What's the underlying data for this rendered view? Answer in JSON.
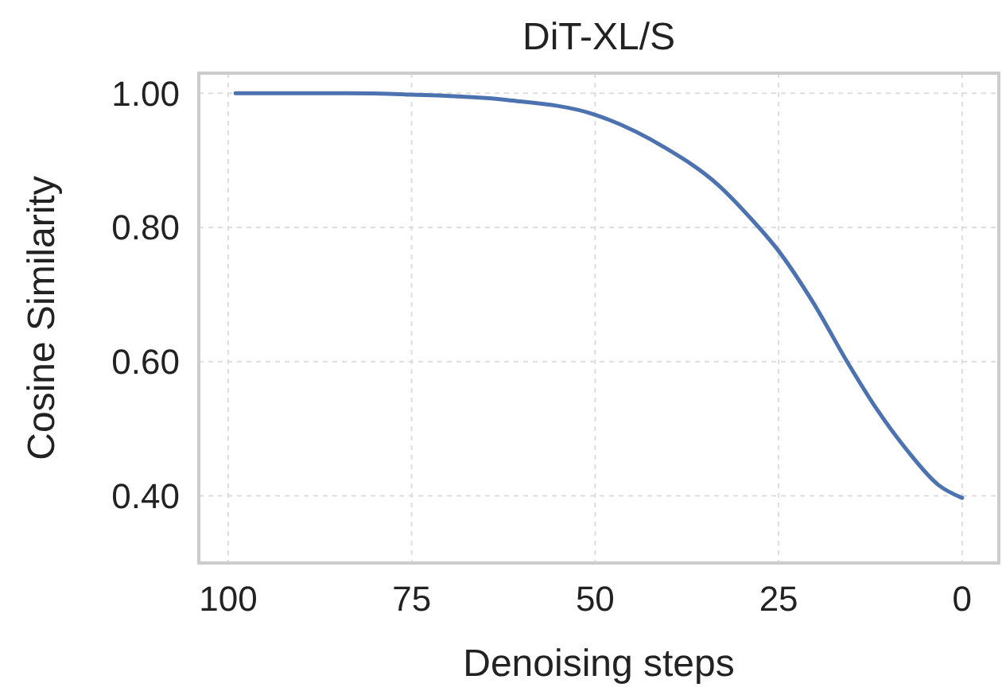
{
  "chart_data": {
    "type": "line",
    "title": "DiT-XL/S",
    "xlabel": "Denoising steps",
    "ylabel": "Cosine Similarity",
    "x": [
      99,
      84,
      75,
      62,
      50,
      40.5,
      33.3,
      29,
      25,
      20.4,
      15.4,
      11.8,
      7.5,
      3.2,
      0
    ],
    "series": [
      {
        "color": "#4c72b0",
        "values": [
          1.0,
          1.0,
          0.998,
          0.99,
          0.968,
          0.919,
          0.864,
          0.816,
          0.765,
          0.69,
          0.595,
          0.532,
          0.468,
          0.416,
          0.397
        ]
      }
    ],
    "xlim": [
      104,
      -5
    ],
    "ylim": [
      0.3,
      1.03
    ],
    "xticks": [
      100,
      75,
      50,
      25,
      0
    ],
    "yticks": [
      {
        "value": 0.4,
        "label": "0.40"
      },
      {
        "value": 0.6,
        "label": "0.60"
      },
      {
        "value": 0.8,
        "label": "0.80"
      },
      {
        "value": 1.0,
        "label": "1.00"
      }
    ],
    "grid": true,
    "marker": "none",
    "line_style": "solid"
  }
}
